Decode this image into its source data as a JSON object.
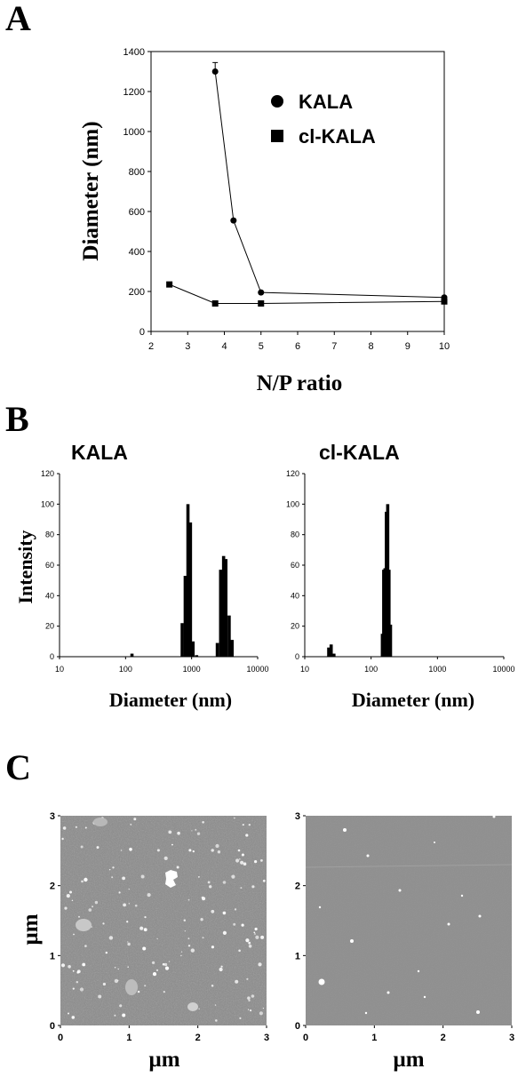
{
  "panel_labels": {
    "a": "A",
    "b": "B",
    "c": "C"
  },
  "chart_data": [
    {
      "type": "line",
      "panel": "A",
      "xlabel": "N/P ratio",
      "ylabel": "Diameter  (nm)",
      "xlim": [
        2,
        10
      ],
      "ylim": [
        0,
        1400
      ],
      "xticks": [
        2,
        3,
        4,
        5,
        6,
        7,
        8,
        9,
        10
      ],
      "yticks": [
        0,
        200,
        400,
        600,
        800,
        1000,
        1200,
        1400
      ],
      "legend_placement": "top-right",
      "series": [
        {
          "name": "KALA",
          "marker": "circle",
          "x": [
            3.75,
            4.25,
            5,
            10
          ],
          "y": [
            1300,
            555,
            195,
            170
          ],
          "yerr": [
            45,
            0,
            0,
            0
          ]
        },
        {
          "name": "cl-KALA",
          "marker": "square",
          "x": [
            2.5,
            3.75,
            5,
            10
          ],
          "y": [
            235,
            140,
            140,
            150
          ]
        }
      ]
    },
    {
      "type": "bar",
      "panel": "B",
      "title": "KALA",
      "xlabel": "Diameter  (nm)",
      "ylabel": "Intensity",
      "xscale": "log",
      "xlim": [
        10,
        10000
      ],
      "ylim": [
        0,
        120
      ],
      "xticks": [
        10,
        100,
        1000,
        10000
      ],
      "yticks": [
        0,
        20,
        40,
        60,
        80,
        100,
        120
      ],
      "bars": [
        {
          "x": 125,
          "value": 2
        },
        {
          "x": 720,
          "value": 22
        },
        {
          "x": 800,
          "value": 53
        },
        {
          "x": 880,
          "value": 100
        },
        {
          "x": 960,
          "value": 88
        },
        {
          "x": 1050,
          "value": 10
        },
        {
          "x": 1190,
          "value": 1
        },
        {
          "x": 2450,
          "value": 9
        },
        {
          "x": 2750,
          "value": 57
        },
        {
          "x": 3050,
          "value": 66
        },
        {
          "x": 3300,
          "value": 64
        },
        {
          "x": 3700,
          "value": 27
        },
        {
          "x": 4100,
          "value": 11
        }
      ]
    },
    {
      "type": "bar",
      "panel": "B",
      "title": "cl-KALA",
      "xlabel": "Diameter  (nm)",
      "ylabel": "",
      "xscale": "log",
      "xlim": [
        10,
        10000
      ],
      "ylim": [
        0,
        120
      ],
      "xticks": [
        10,
        100,
        1000,
        10000
      ],
      "yticks": [
        0,
        20,
        40,
        60,
        80,
        100,
        120
      ],
      "bars": [
        {
          "x": 23,
          "value": 6
        },
        {
          "x": 25,
          "value": 8
        },
        {
          "x": 27.5,
          "value": 2
        },
        {
          "x": 148,
          "value": 15
        },
        {
          "x": 155,
          "value": 57
        },
        {
          "x": 162,
          "value": 58
        },
        {
          "x": 170,
          "value": 95
        },
        {
          "x": 178,
          "value": 100
        },
        {
          "x": 186,
          "value": 57
        },
        {
          "x": 196,
          "value": 21
        }
      ]
    },
    {
      "type": "heatmap",
      "panel": "C",
      "description_role": "AFM image, KALA",
      "xlabel": "µm",
      "ylabel": "µm",
      "xlim": [
        0,
        3
      ],
      "ylim": [
        0,
        3
      ],
      "xticks": [
        0,
        1,
        2,
        3
      ],
      "yticks": [
        0,
        1,
        2,
        3
      ]
    },
    {
      "type": "heatmap",
      "panel": "C",
      "description_role": "AFM image, cl-KALA",
      "xlabel": "µm",
      "ylabel": "",
      "xlim": [
        0,
        3
      ],
      "ylim": [
        0,
        3
      ],
      "xticks": [
        0,
        1,
        2,
        3
      ],
      "yticks": [
        0,
        1,
        2,
        3
      ]
    }
  ],
  "colors": {
    "ink": "#000000",
    "afm_left_bg": "#8a8a8a",
    "afm_right_bg": "#8e8e8e",
    "particle": "#ffffff"
  }
}
